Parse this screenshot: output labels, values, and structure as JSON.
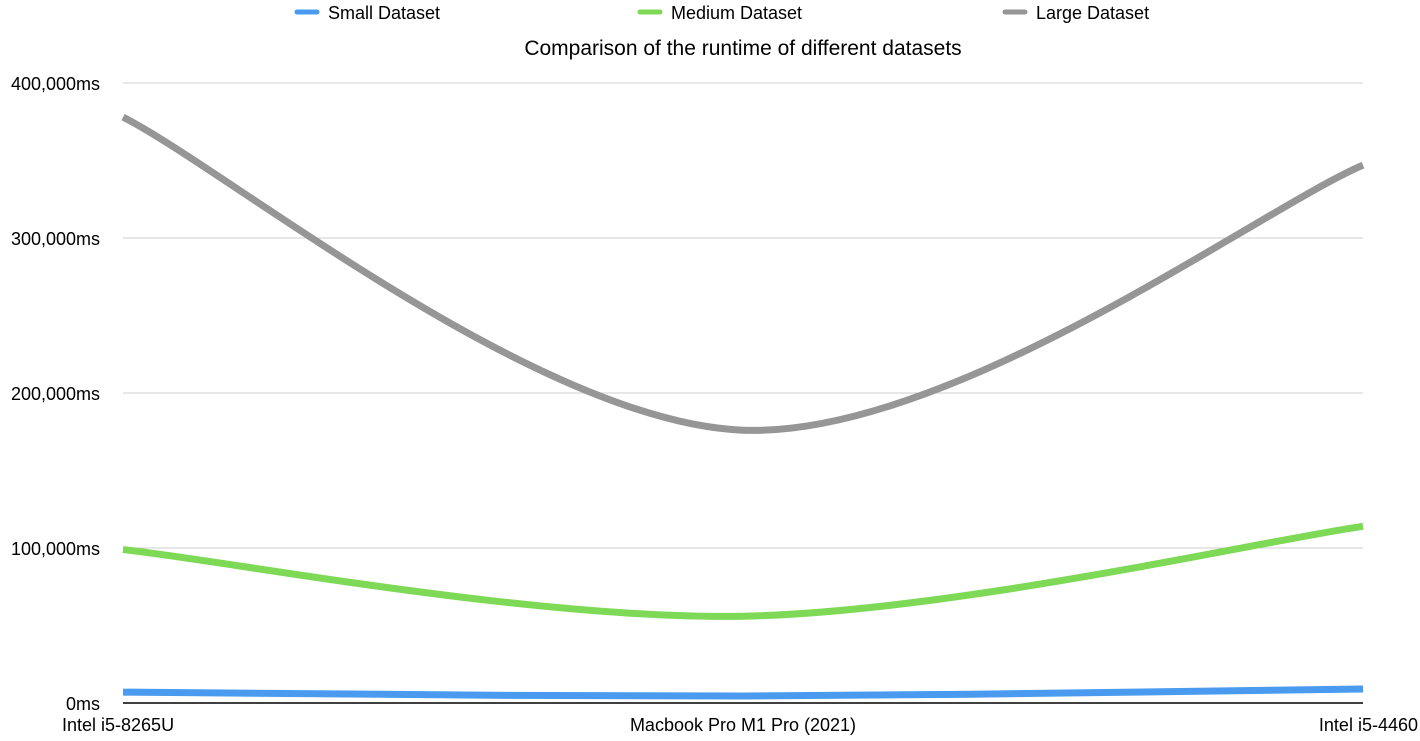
{
  "chart_data": {
    "type": "line",
    "title": "Comparison of the runtime of different datasets",
    "categories": [
      "Intel i5-8265U",
      "Macbook Pro M1 Pro (2021)",
      "Intel i5-4460"
    ],
    "series": [
      {
        "name": "Small Dataset",
        "color": "#4A9BF0",
        "values": [
          7000,
          4500,
          9000
        ]
      },
      {
        "name": "Medium Dataset",
        "color": "#7ED957",
        "values": [
          99000,
          56000,
          114000
        ]
      },
      {
        "name": "Large Dataset",
        "color": "#969696",
        "values": [
          378000,
          176000,
          347000
        ]
      }
    ],
    "ylim": [
      0,
      400000
    ],
    "y_ticks": [
      0,
      100000,
      200000,
      300000,
      400000
    ],
    "y_tick_labels": [
      "0ms",
      "100,000ms",
      "200,000ms",
      "300,000ms",
      "400,000ms"
    ],
    "xlabel": "",
    "ylabel": "",
    "grid": true,
    "legend_position": "top"
  }
}
